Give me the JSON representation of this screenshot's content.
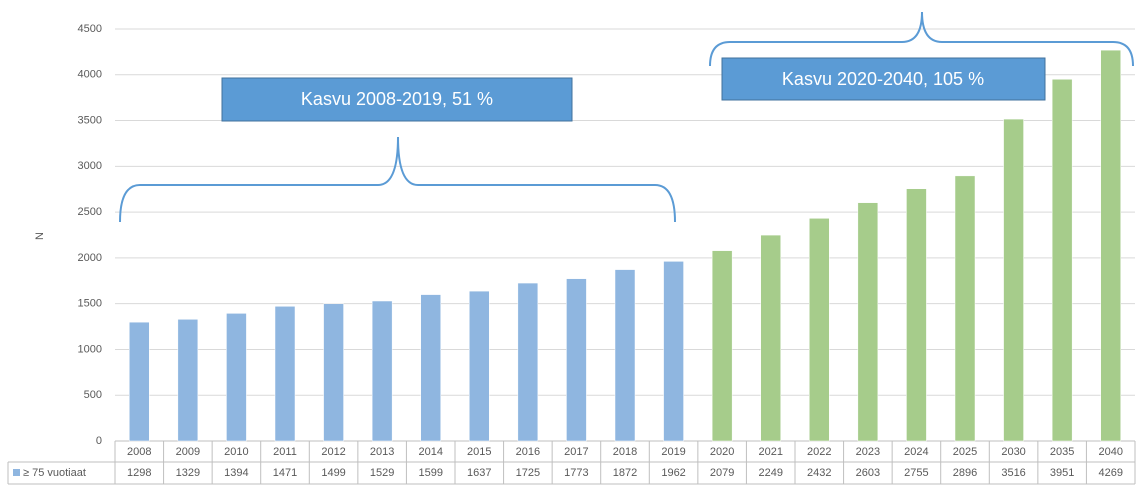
{
  "chart_data": {
    "type": "bar",
    "ylabel": "N",
    "categories": [
      "2008",
      "2009",
      "2010",
      "2011",
      "2012",
      "2013",
      "2014",
      "2015",
      "2016",
      "2017",
      "2018",
      "2019",
      "2020",
      "2021",
      "2022",
      "2023",
      "2024",
      "2025",
      "2030",
      "2035",
      "2040"
    ],
    "series": [
      {
        "name": "≥ 75 vuotiaat",
        "color": "#8fb6e0",
        "colors": [
          "#8fb6e0",
          "#8fb6e0",
          "#8fb6e0",
          "#8fb6e0",
          "#8fb6e0",
          "#8fb6e0",
          "#8fb6e0",
          "#8fb6e0",
          "#8fb6e0",
          "#8fb6e0",
          "#8fb6e0",
          "#8fb6e0",
          "#a6cc8b",
          "#a6cc8b",
          "#a6cc8b",
          "#a6cc8b",
          "#a6cc8b",
          "#a6cc8b",
          "#a6cc8b",
          "#a6cc8b",
          "#a6cc8b"
        ],
        "values": [
          1298,
          1329,
          1394,
          1471,
          1499,
          1529,
          1599,
          1637,
          1725,
          1773,
          1872,
          1962,
          2079,
          2249,
          2432,
          2603,
          2755,
          2896,
          3516,
          3951,
          4269
        ]
      }
    ],
    "ylim": [
      0,
      4500
    ],
    "yticks": [
      0,
      500,
      1000,
      1500,
      2000,
      2500,
      3000,
      3500,
      4000,
      4500
    ],
    "grid": true,
    "annotations": [
      "Kasvu 2008-2019, 51 %",
      "Kasvu 2020-2040, 105 %"
    ]
  }
}
